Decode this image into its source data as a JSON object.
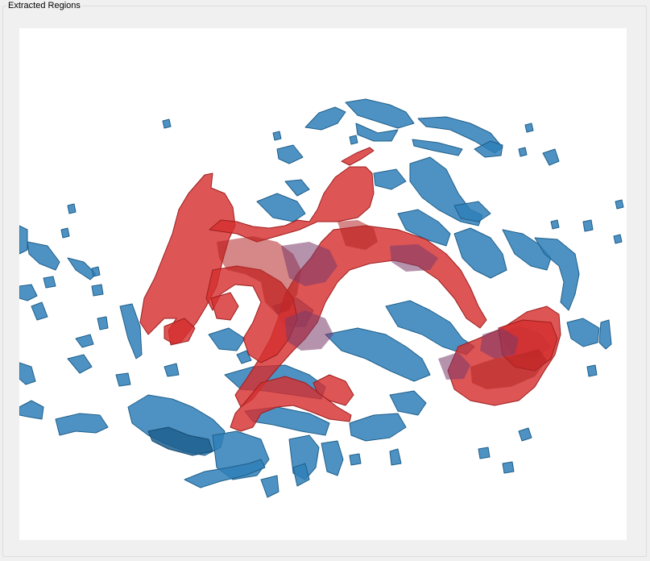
{
  "panel": {
    "title": "Extracted Regions"
  },
  "viewport": {
    "background": "#ffffff",
    "regions": [
      {
        "name": "region-blue",
        "color": "#2f7fb8"
      },
      {
        "name": "region-red",
        "color": "#d6302f"
      }
    ]
  }
}
